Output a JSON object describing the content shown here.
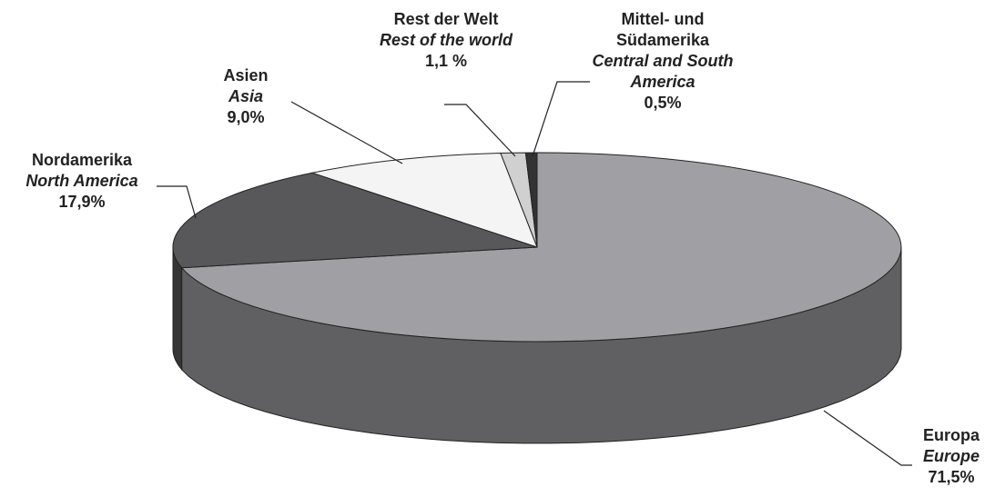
{
  "chart_data": {
    "type": "pie",
    "categories": [
      "Europa",
      "Nordamerika",
      "Asien",
      "Rest der Welt",
      "Mittel- und Südamerika"
    ],
    "categories_en": [
      "Europe",
      "North America",
      "Asia",
      "Rest of the world",
      "Central and South America"
    ],
    "values": [
      71.5,
      17.9,
      9.0,
      1.1,
      0.5
    ],
    "value_labels": [
      "71,5%",
      "17,9%",
      "9,0%",
      "1,1 %",
      "0,5%"
    ],
    "colors": [
      "#a0a0a4",
      "#58585a",
      "#f4f4f4",
      "#d0d0d0",
      "#333333"
    ]
  }
}
